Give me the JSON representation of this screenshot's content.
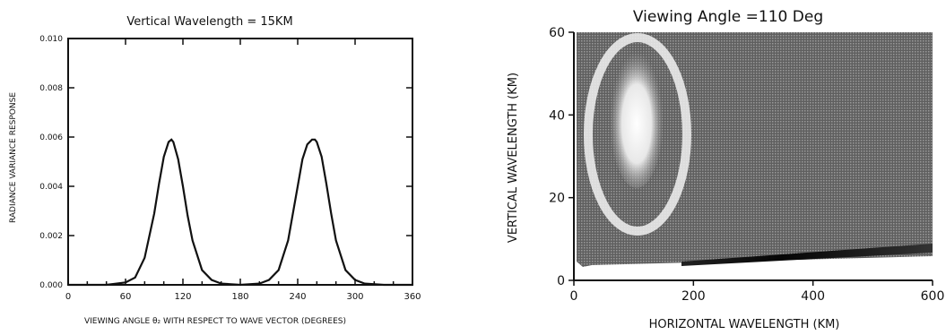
{
  "chart_data": [
    {
      "type": "line",
      "title": "Vertical Wavelength =  15KM",
      "xlabel": "VIEWING ANGLE θ₂ WITH RESPECT TO WAVE VECTOR (DEGREES)",
      "ylabel": "RADIANCE VARIANCE RESPONSE",
      "xlim": [
        0,
        360
      ],
      "ylim": [
        0,
        0.01
      ],
      "xticks": [
        "0",
        "60",
        "120",
        "180",
        "240",
        "300",
        "360"
      ],
      "yticks": [
        "0.000",
        "0.002",
        "0.004",
        "0.006",
        "0.008",
        "0.010"
      ],
      "grid": false,
      "x": [
        0,
        40,
        60,
        70,
        80,
        90,
        95,
        100,
        105,
        108,
        110,
        115,
        120,
        125,
        130,
        140,
        150,
        160,
        180,
        200,
        210,
        220,
        230,
        240,
        245,
        250,
        255,
        258,
        260,
        265,
        270,
        275,
        280,
        290,
        300,
        310,
        330,
        360
      ],
      "values": [
        0,
        0,
        0.0001,
        0.0003,
        0.0011,
        0.0029,
        0.0041,
        0.0052,
        0.0058,
        0.0059,
        0.0058,
        0.0051,
        0.004,
        0.0028,
        0.0018,
        0.0006,
        0.0002,
        5e-05,
        0,
        5e-05,
        0.0002,
        0.0006,
        0.0018,
        0.004,
        0.0051,
        0.0057,
        0.0059,
        0.0059,
        0.0058,
        0.0052,
        0.0041,
        0.0029,
        0.0018,
        0.0006,
        0.0002,
        5e-05,
        0,
        0
      ]
    },
    {
      "type": "heatmap",
      "title": "Viewing Angle =110 Deg",
      "xlabel": "HORIZONTAL WAVELENGTH (KM)",
      "ylabel": "VERTICAL WAVELENGTH (KM)",
      "xlim": [
        0,
        600
      ],
      "ylim": [
        0,
        60
      ],
      "xticks": [
        "0",
        "200",
        "400",
        "600"
      ],
      "yticks": [
        "0",
        "20",
        "40",
        "60"
      ],
      "grid": false,
      "features": {
        "high_response_center_km": [
          110,
          30
        ],
        "low_response_band_km": [
          [
            200,
            7
          ],
          [
            600,
            11
          ]
        ]
      }
    }
  ]
}
